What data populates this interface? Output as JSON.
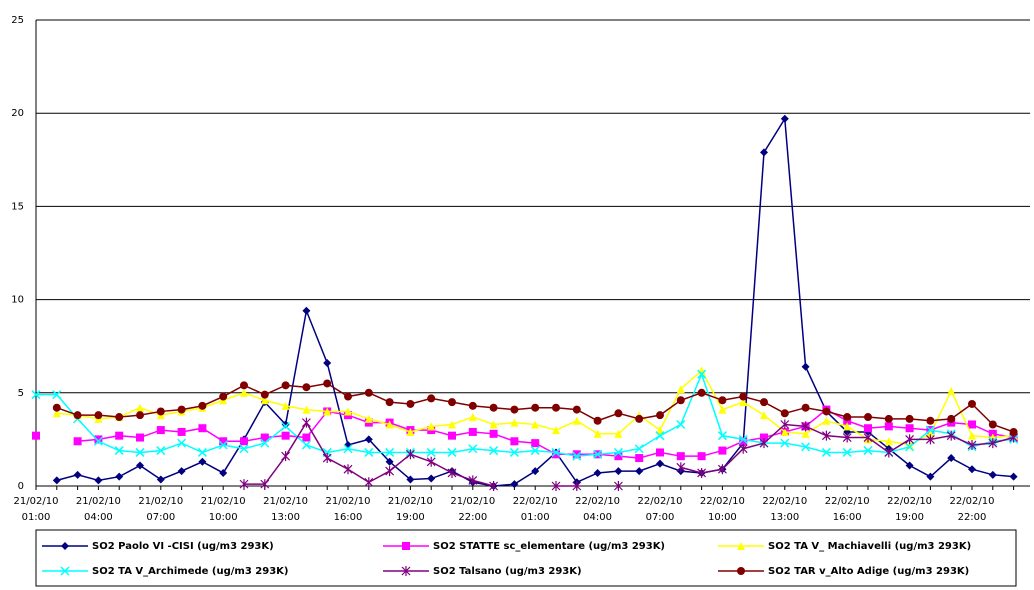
{
  "chart_data": {
    "type": "line",
    "categories": [
      "21/02/10 01:00",
      null,
      null,
      "21/02/10 04:00",
      null,
      null,
      "21/02/10 07:00",
      null,
      null,
      "21/02/10 10:00",
      null,
      null,
      "21/02/10 13:00",
      null,
      null,
      "21/02/10 16:00",
      null,
      null,
      "21/02/10 19:00",
      null,
      null,
      "21/02/10 22:00",
      null,
      null,
      "22/02/10 01:00",
      null,
      null,
      "22/02/10 04:00",
      null,
      null,
      "22/02/10 07:00",
      null,
      null,
      "22/02/10 10:00",
      null,
      null,
      "22/02/10 13:00",
      null,
      null,
      "22/02/10 16:00",
      null,
      null,
      "22/02/10 19:00",
      null,
      null,
      "22/02/10 22:00",
      null,
      null
    ],
    "ylim": [
      0,
      25
    ],
    "yticks": [
      0,
      5,
      10,
      15,
      20,
      25
    ],
    "grid": true,
    "series": [
      {
        "name": "SO2 Paolo VI -CISI (ug/m3 293K)",
        "color": "#000080",
        "marker": "diamond",
        "values": [
          null,
          0.3,
          0.6,
          0.3,
          0.5,
          1.1,
          0.35,
          0.8,
          1.3,
          0.7,
          2.5,
          4.5,
          3.3,
          9.4,
          6.6,
          2.2,
          2.5,
          1.3,
          0.35,
          0.4,
          0.8,
          0.2,
          0,
          0.1,
          0.8,
          1.8,
          0.2,
          0.7,
          0.8,
          0.8,
          1.2,
          0.8,
          0.7,
          0.9,
          2.3,
          17.9,
          19.7,
          6.4,
          4.0,
          2.9,
          2.9,
          2.0,
          1.1,
          0.5,
          1.5,
          0.9,
          0.6,
          0.5
        ]
      },
      {
        "name": "SO2 STATTE sc_elementare (ug/m3 293K)",
        "color": "#ff00ff",
        "marker": "square",
        "values": [
          2.7,
          null,
          2.4,
          2.5,
          2.7,
          2.6,
          3.0,
          2.9,
          3.1,
          2.4,
          2.4,
          2.6,
          2.7,
          2.6,
          4.0,
          3.8,
          3.4,
          3.4,
          3.0,
          3.0,
          2.7,
          2.9,
          2.8,
          2.4,
          2.3,
          1.7,
          1.7,
          1.7,
          1.6,
          1.5,
          1.8,
          1.6,
          1.6,
          1.9,
          2.4,
          2.6,
          2.9,
          3.2,
          4.1,
          3.5,
          3.1,
          3.2,
          3.1,
          3.0,
          3.4,
          3.3,
          2.8,
          2.6
        ]
      },
      {
        "name": "SO2 TA V_ Machiavelli (ug/m3 293K)",
        "color": "#ffff00",
        "marker": "triangle",
        "values": [
          null,
          3.9,
          3.8,
          3.6,
          3.7,
          4.2,
          3.8,
          4.0,
          4.2,
          4.6,
          5.0,
          4.6,
          4.3,
          4.1,
          4.0,
          4.0,
          3.6,
          3.3,
          2.9,
          3.2,
          3.3,
          3.7,
          3.3,
          3.4,
          3.3,
          3.0,
          3.5,
          2.8,
          2.8,
          3.8,
          3.0,
          5.2,
          6.2,
          4.1,
          4.5,
          3.8,
          2.9,
          2.8,
          3.5,
          3.2,
          2.5,
          2.4,
          2.2,
          2.8,
          5.1,
          2.7,
          2.6,
          2.7
        ]
      },
      {
        "name": "SO2 TA V_Archimede (ug/m3 293K)",
        "color": "#00ffff",
        "marker": "cross",
        "values": [
          4.9,
          4.9,
          3.6,
          2.4,
          1.9,
          1.8,
          1.9,
          2.3,
          1.8,
          2.2,
          2.0,
          2.3,
          3.2,
          2.2,
          1.8,
          2.0,
          1.8,
          1.8,
          1.8,
          1.8,
          1.8,
          2.0,
          1.9,
          1.8,
          1.9,
          1.8,
          1.6,
          1.7,
          1.8,
          2.0,
          2.7,
          3.3,
          6.0,
          2.7,
          2.5,
          2.3,
          2.3,
          2.1,
          1.8,
          1.8,
          1.9,
          1.8,
          2.1,
          3.0,
          2.8,
          2.1,
          2.4,
          2.5
        ]
      },
      {
        "name": "SO2 Talsano (ug/m3 293K)",
        "color": "#800080",
        "marker": "star",
        "values": [
          null,
          null,
          null,
          null,
          null,
          null,
          null,
          null,
          null,
          null,
          0.1,
          0.1,
          1.6,
          3.4,
          1.5,
          0.9,
          0.2,
          0.8,
          1.7,
          1.3,
          0.7,
          0.3,
          0.0,
          null,
          null,
          0.0,
          0.0,
          null,
          0.0,
          null,
          null,
          1.0,
          0.7,
          0.9,
          2.0,
          2.3,
          3.3,
          3.2,
          2.7,
          2.6,
          2.6,
          1.8,
          2.5,
          2.5,
          2.7,
          2.2,
          2.3,
          2.6
        ]
      },
      {
        "name": "SO2 TAR v_Alto Adige (ug/m3 293K)",
        "color": "#800000",
        "marker": "circle",
        "values": [
          null,
          4.2,
          3.8,
          3.8,
          3.7,
          3.8,
          4.0,
          4.1,
          4.3,
          4.8,
          5.4,
          4.9,
          5.4,
          5.3,
          5.5,
          4.8,
          5.0,
          4.5,
          4.4,
          4.7,
          4.5,
          4.3,
          4.2,
          4.1,
          4.2,
          4.2,
          4.1,
          3.5,
          3.9,
          3.6,
          3.8,
          4.6,
          5.0,
          4.6,
          4.8,
          4.5,
          3.9,
          4.2,
          4.0,
          3.7,
          3.7,
          3.6,
          3.6,
          3.5,
          3.6,
          4.4,
          3.3,
          2.9
        ]
      }
    ]
  }
}
